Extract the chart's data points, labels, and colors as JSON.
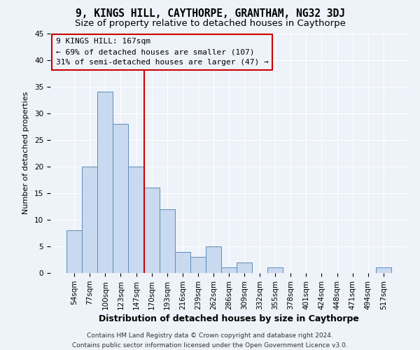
{
  "title": "9, KINGS HILL, CAYTHORPE, GRANTHAM, NG32 3DJ",
  "subtitle": "Size of property relative to detached houses in Caythorpe",
  "xlabel": "Distribution of detached houses by size in Caythorpe",
  "ylabel": "Number of detached properties",
  "bin_labels": [
    "54sqm",
    "77sqm",
    "100sqm",
    "123sqm",
    "147sqm",
    "170sqm",
    "193sqm",
    "216sqm",
    "239sqm",
    "262sqm",
    "286sqm",
    "309sqm",
    "332sqm",
    "355sqm",
    "378sqm",
    "401sqm",
    "424sqm",
    "448sqm",
    "471sqm",
    "494sqm",
    "517sqm"
  ],
  "bar_values": [
    8,
    20,
    34,
    28,
    20,
    16,
    12,
    4,
    3,
    5,
    1,
    2,
    0,
    1,
    0,
    0,
    0,
    0,
    0,
    0,
    1
  ],
  "bar_color": "#c9d9ef",
  "bar_edge_color": "#5b8db8",
  "vline_color": "#cc0000",
  "annotation_line1": "9 KINGS HILL: 167sqm",
  "annotation_line2": "← 69% of detached houses are smaller (107)",
  "annotation_line3": "31% of semi-detached houses are larger (47) →",
  "annotation_box_edgecolor": "#cc0000",
  "ylim_max": 45,
  "yticks": [
    0,
    5,
    10,
    15,
    20,
    25,
    30,
    35,
    40,
    45
  ],
  "footer_line1": "Contains HM Land Registry data © Crown copyright and database right 2024.",
  "footer_line2": "Contains public sector information licensed under the Open Government Licence v3.0.",
  "background_color": "#eef2f9",
  "grid_color": "#ffffff",
  "title_fontsize": 10.5,
  "subtitle_fontsize": 9.5,
  "xlabel_fontsize": 9,
  "ylabel_fontsize": 8,
  "tick_fontsize": 7.5,
  "annotation_fontsize": 8,
  "footer_fontsize": 6.5
}
